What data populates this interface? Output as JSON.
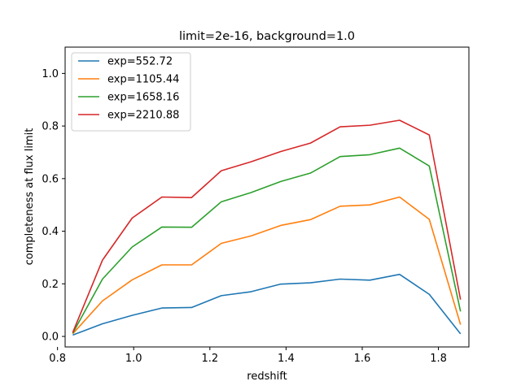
{
  "chart_data": {
    "type": "line",
    "title": "limit=2e-16, background=1.0",
    "xlabel": "redshift",
    "ylabel": "completeness at flux limit",
    "xlim": [
      0.82,
      1.88
    ],
    "ylim": [
      -0.04,
      1.1
    ],
    "xticks": [
      0.8,
      1.0,
      1.2,
      1.4,
      1.6,
      1.8
    ],
    "xtick_labels": [
      "0.8",
      "1.0",
      "1.2",
      "1.4",
      "1.6",
      "1.8"
    ],
    "yticks": [
      0.0,
      0.2,
      0.4,
      0.6,
      0.8,
      1.0
    ],
    "ytick_labels": [
      "0.0",
      "0.2",
      "0.4",
      "0.6",
      "0.8",
      "1.0"
    ],
    "grid": false,
    "legend_position": "top-left",
    "x": [
      0.84,
      0.918,
      0.996,
      1.074,
      1.152,
      1.23,
      1.308,
      1.386,
      1.464,
      1.542,
      1.62,
      1.698,
      1.776,
      1.858
    ],
    "series": [
      {
        "name": "exp=552.72",
        "color": "#1f77b4",
        "values": [
          0.005,
          0.048,
          0.08,
          0.108,
          0.11,
          0.155,
          0.17,
          0.199,
          0.204,
          0.218,
          0.214,
          0.236,
          0.16,
          0.01
        ]
      },
      {
        "name": "exp=1105.44",
        "color": "#ff7f0e",
        "values": [
          0.01,
          0.135,
          0.215,
          0.272,
          0.272,
          0.354,
          0.382,
          0.422,
          0.444,
          0.495,
          0.5,
          0.53,
          0.445,
          0.045
        ]
      },
      {
        "name": "exp=1658.16",
        "color": "#2ca02c",
        "values": [
          0.012,
          0.218,
          0.34,
          0.416,
          0.415,
          0.512,
          0.547,
          0.589,
          0.621,
          0.684,
          0.691,
          0.716,
          0.648,
          0.095
        ]
      },
      {
        "name": "exp=2210.88",
        "color": "#d62728",
        "values": [
          0.015,
          0.29,
          0.45,
          0.53,
          0.528,
          0.63,
          0.664,
          0.703,
          0.735,
          0.797,
          0.803,
          0.822,
          0.766,
          0.14
        ]
      }
    ]
  }
}
